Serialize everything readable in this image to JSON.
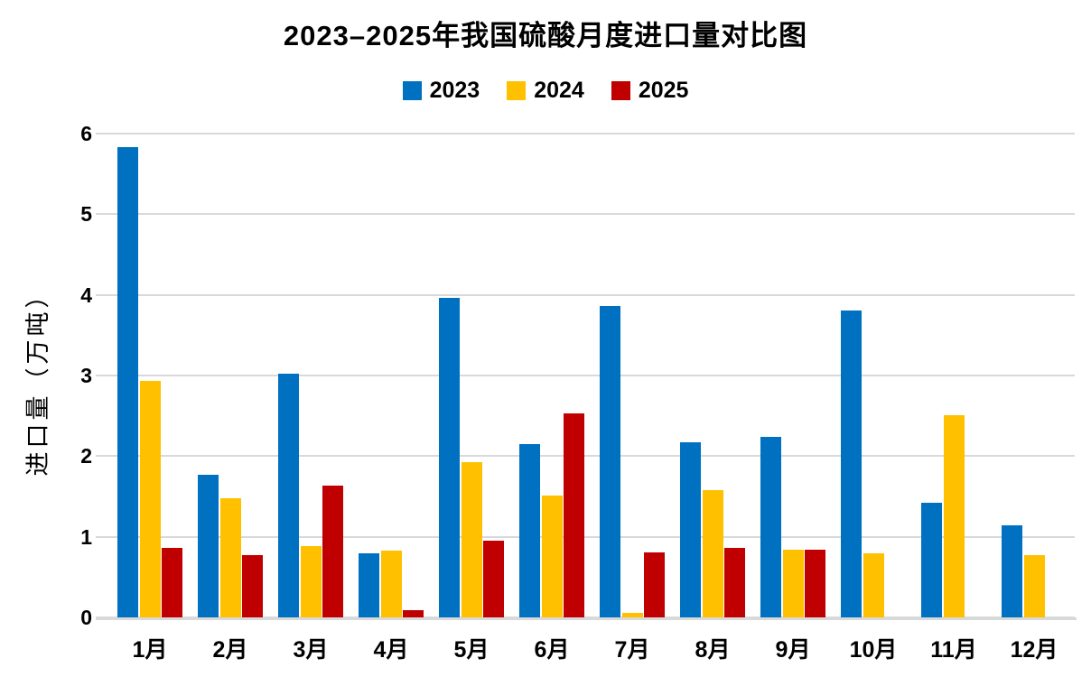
{
  "chart_data": {
    "type": "bar",
    "title": "2023–2025年我国硫酸月度进口量对比图",
    "ylabel": "进口量（万吨）",
    "xlabel": "",
    "categories": [
      "1月",
      "2月",
      "3月",
      "4月",
      "5月",
      "6月",
      "7月",
      "8月",
      "9月",
      "10月",
      "11月",
      "12月"
    ],
    "series": [
      {
        "name": "2023",
        "color": "#0070C0",
        "values": [
          5.83,
          1.77,
          3.02,
          0.79,
          3.96,
          2.15,
          3.86,
          2.17,
          2.24,
          3.81,
          1.42,
          1.14
        ]
      },
      {
        "name": "2024",
        "color": "#FFC000",
        "values": [
          2.93,
          1.48,
          0.88,
          0.83,
          1.93,
          1.51,
          0.06,
          1.58,
          0.84,
          0.8,
          2.51,
          0.77
        ]
      },
      {
        "name": "2025",
        "color": "#C00000",
        "values": [
          0.86,
          0.77,
          1.63,
          0.09,
          0.95,
          2.53,
          0.81,
          0.86,
          0.84,
          null,
          null,
          null
        ]
      }
    ],
    "ylim": [
      0,
      6
    ],
    "yticks": [
      0,
      1,
      2,
      3,
      4,
      5,
      6
    ],
    "grid": true,
    "gridline_color": "#D9D9D9",
    "legend_position": "top",
    "text_color": "#000000",
    "background_color": "#FFFFFF"
  }
}
